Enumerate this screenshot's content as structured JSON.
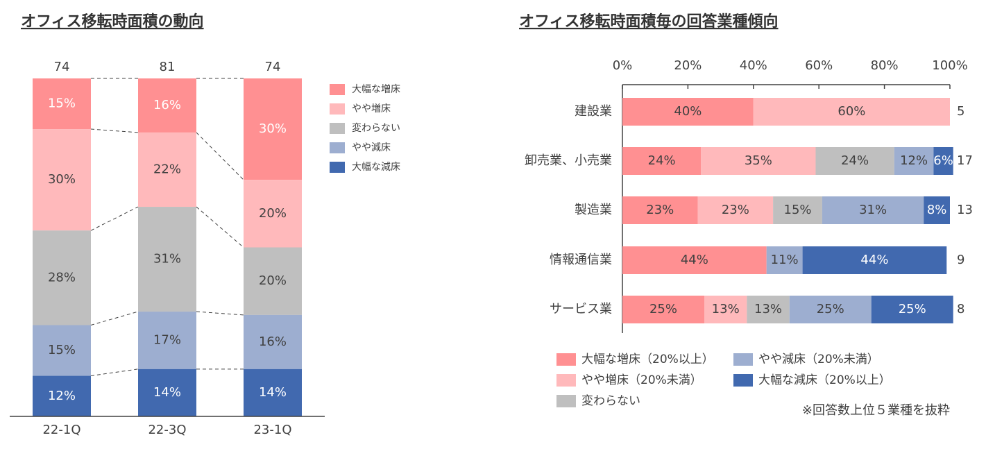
{
  "chart_data": [
    {
      "type": "bar",
      "title": "オフィス移転時面積の動向",
      "categories": [
        "22-1Q",
        "22-3Q",
        "23-1Q"
      ],
      "totals": [
        74,
        81,
        74
      ],
      "series": [
        {
          "name": "大幅な増床",
          "color": "#ff9092",
          "label_color": "#ffffff",
          "values": [
            15,
            16,
            30
          ],
          "value_labels": [
            "15%",
            "16%",
            "30%"
          ]
        },
        {
          "name": "やや増床",
          "color": "#ffb9bb",
          "label_color": "#404040",
          "values": [
            30,
            22,
            20
          ],
          "value_labels": [
            "30%",
            "22%",
            "20%"
          ]
        },
        {
          "name": "変わらない",
          "color": "#bfbfbf",
          "label_color": "#404040",
          "values": [
            28,
            31,
            20
          ],
          "value_labels": [
            "28%",
            "31%",
            "20%"
          ]
        },
        {
          "name": "やや減床",
          "color": "#9daed0",
          "label_color": "#404040",
          "values": [
            15,
            17,
            16
          ],
          "value_labels": [
            "15%",
            "17%",
            "16%"
          ]
        },
        {
          "name": "大幅な減床",
          "color": "#4169af",
          "label_color": "#ffffff",
          "values": [
            12,
            14,
            14
          ],
          "value_labels": [
            "12%",
            "14%",
            "14%"
          ]
        }
      ]
    },
    {
      "type": "barh",
      "title": "オフィス移転時面積毎の回答業種傾向",
      "categories": [
        "建設業",
        "卸売業、小売業",
        "製造業",
        "情報通信業",
        "サービス業"
      ],
      "totals": [
        5,
        17,
        13,
        9,
        8
      ],
      "xlim": [
        0,
        100
      ],
      "xticks": [
        {
          "value": 0,
          "label": "0%"
        },
        {
          "value": 20,
          "label": "20%"
        },
        {
          "value": 40,
          "label": "40%"
        },
        {
          "value": 60,
          "label": "60%"
        },
        {
          "value": 80,
          "label": "80%"
        },
        {
          "value": 100,
          "label": "100%"
        }
      ],
      "note": "※回答数上位５業種を抜粋",
      "series": [
        {
          "name": "大幅な増床（20%以上）",
          "color": "#ff9092",
          "label_color": "#404040",
          "values": [
            40,
            24,
            23,
            44,
            25
          ],
          "value_labels": [
            "40%",
            "24%",
            "23%",
            "44%",
            "25%"
          ]
        },
        {
          "name": "やや増床（20%未満）",
          "color": "#ffb9bb",
          "label_color": "#404040",
          "values": [
            60,
            35,
            23,
            0,
            13
          ],
          "value_labels": [
            "60%",
            "35%",
            "23%",
            null,
            "13%"
          ]
        },
        {
          "name": "変わらない",
          "color": "#bfbfbf",
          "label_color": "#404040",
          "values": [
            0,
            24,
            15,
            0,
            13
          ],
          "value_labels": [
            null,
            "24%",
            "15%",
            null,
            "13%"
          ]
        },
        {
          "name": "やや減床（20%未満）",
          "color": "#9daed0",
          "label_color": "#404040",
          "values": [
            0,
            12,
            31,
            11,
            25
          ],
          "value_labels": [
            null,
            "12%",
            "31%",
            "11%",
            "25%"
          ]
        },
        {
          "name": "大幅な減床（20%以上）",
          "color": "#4169af",
          "label_color": "#ffffff",
          "values": [
            0,
            6,
            8,
            44,
            25
          ],
          "value_labels": [
            null,
            "6%",
            "8%",
            "44%",
            "25%"
          ]
        }
      ]
    }
  ]
}
